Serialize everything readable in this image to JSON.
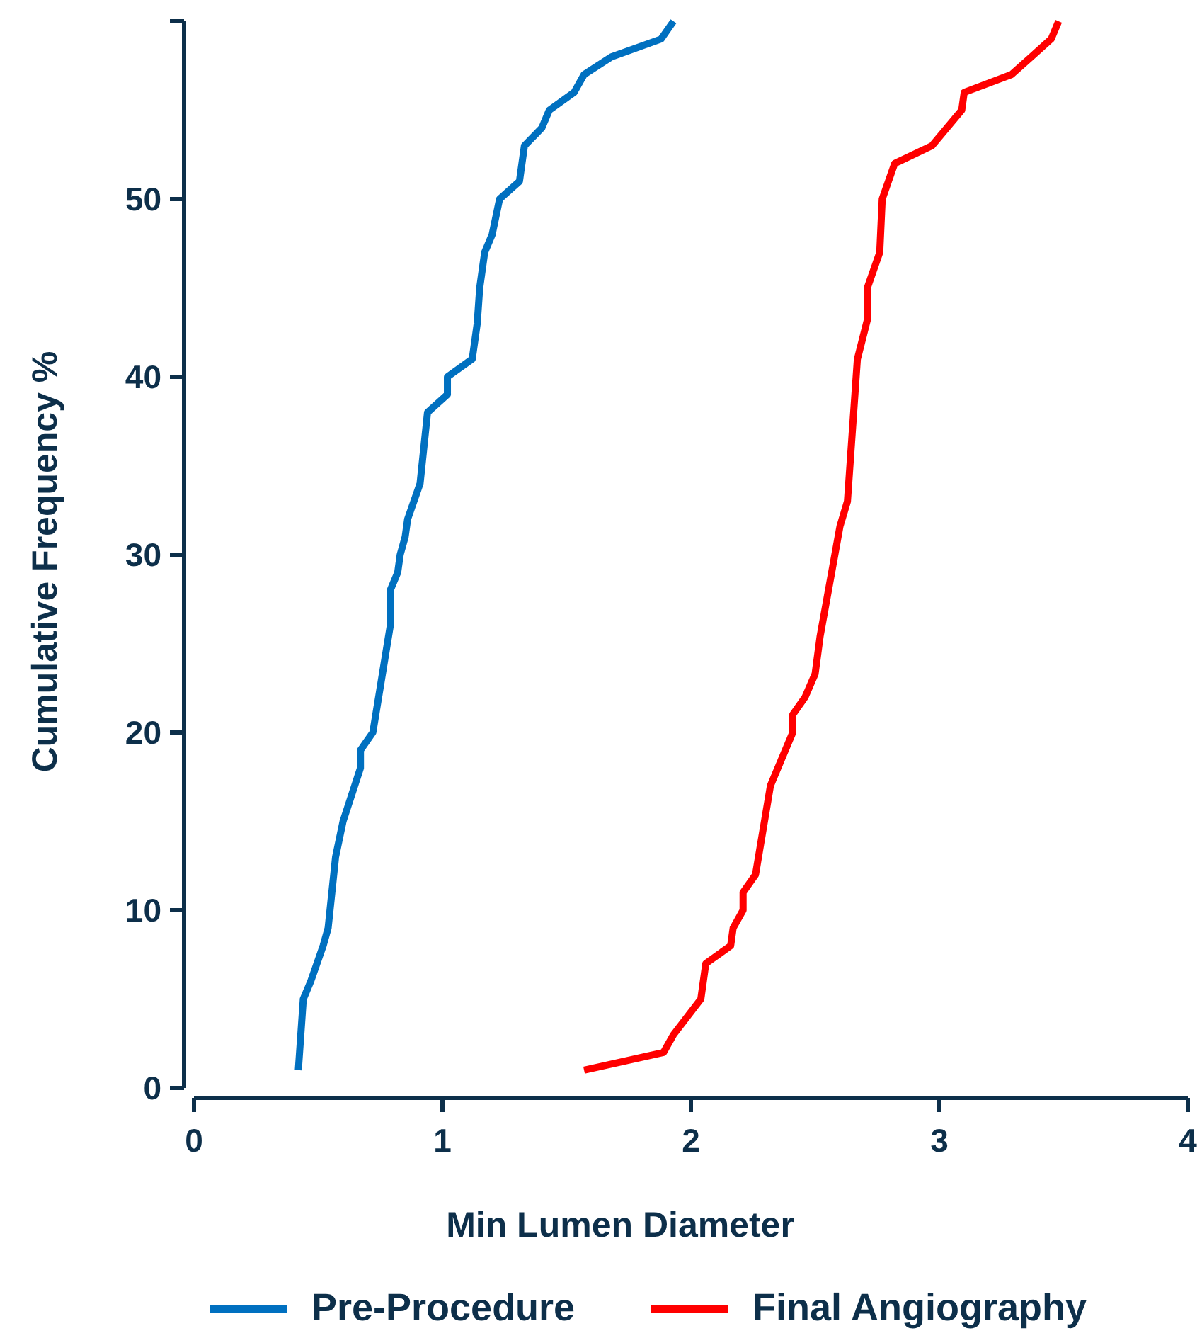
{
  "chart_data": {
    "type": "line",
    "xlabel": "Min Lumen Diameter",
    "ylabel": "Cumulative Frequency %",
    "xlim": [
      0,
      4
    ],
    "xticks": [
      0,
      1,
      2,
      3,
      4
    ],
    "ylim": [
      0,
      60
    ],
    "yticks": [
      0,
      10,
      20,
      30,
      40,
      50,
      {
        "value": 60,
        "label": null
      }
    ],
    "grid": false,
    "legend": "bottom",
    "marker": "none",
    "line_style": "solid",
    "series": [
      {
        "name": "Pre-Procedure",
        "color": "#0070c0",
        "x": [
          0.42,
          0.44,
          0.47,
          0.52,
          0.54,
          0.57,
          0.6,
          0.67,
          0.67,
          0.72,
          0.79,
          0.79,
          0.82,
          0.83,
          0.85,
          0.86,
          0.91,
          0.94,
          1.02,
          1.02,
          1.12,
          1.14,
          1.15,
          1.17,
          1.2,
          1.23,
          1.31,
          1.33,
          1.4,
          1.43,
          1.53,
          1.57,
          1.68,
          1.88,
          1.93
        ],
        "values": [
          1,
          5,
          6,
          8,
          9,
          13,
          15,
          18,
          19,
          20,
          26,
          28,
          29,
          30,
          31,
          32,
          34,
          38,
          39,
          40,
          41,
          43,
          45,
          47,
          48,
          50,
          51,
          53,
          54,
          55,
          56,
          57,
          58,
          59,
          60
        ]
      },
      {
        "name": "Final Angiography",
        "color": "#ff0000",
        "x": [
          1.57,
          1.89,
          1.93,
          2.04,
          2.06,
          2.16,
          2.17,
          2.21,
          2.21,
          2.26,
          2.32,
          2.41,
          2.41,
          2.46,
          2.5,
          2.52,
          2.6,
          2.63,
          2.67,
          2.71,
          2.71,
          2.76,
          2.77,
          2.82,
          2.97,
          3.09,
          3.1,
          3.29,
          3.37,
          3.45,
          3.48
        ],
        "values": [
          1,
          2,
          3,
          5,
          7,
          8,
          9,
          10,
          11,
          12,
          17,
          20,
          21,
          22,
          23.3,
          25.4,
          31.6,
          33,
          41,
          43.2,
          45,
          47,
          50,
          52,
          53,
          55,
          56,
          57,
          58,
          59,
          60
        ]
      }
    ]
  }
}
